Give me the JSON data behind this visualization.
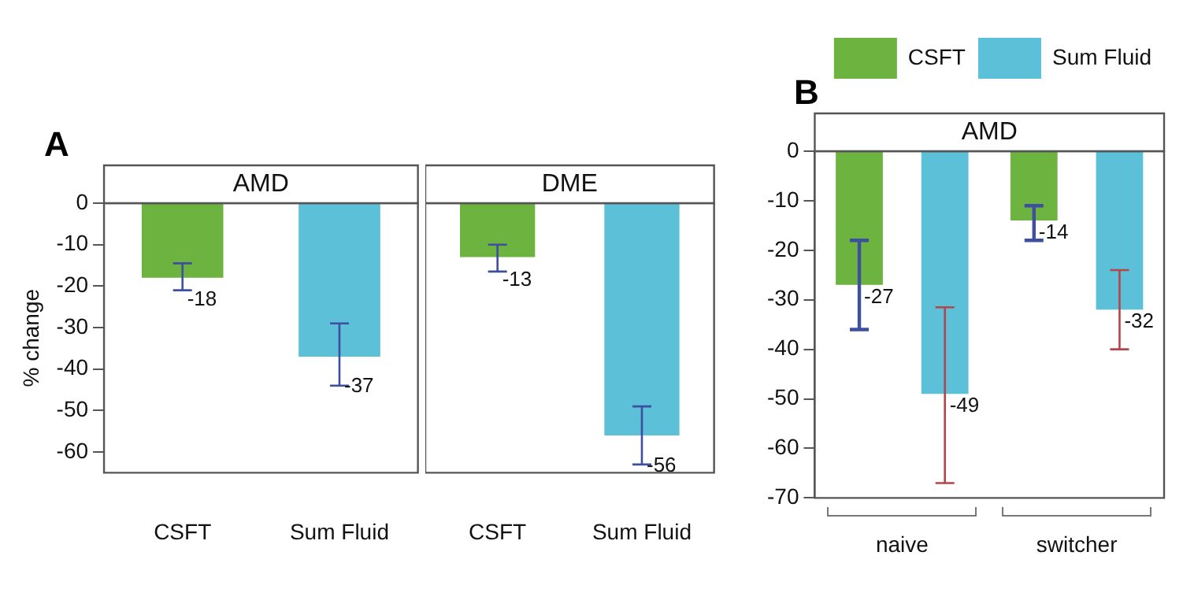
{
  "chart_data": [
    {
      "type": "bar",
      "title": "A",
      "subtitle": "AMD",
      "ylabel": "% change",
      "categories": [
        "CSFT",
        "Sum Fluid"
      ],
      "values": [
        -18,
        -37
      ],
      "colors": [
        "#6db33f",
        "#5bc0d8"
      ],
      "errors": [
        [
          -21,
          -14.5
        ],
        [
          -44,
          -29
        ]
      ],
      "data_labels": true,
      "ylim": [
        -65,
        0
      ],
      "yticks": [
        0,
        -10,
        -20,
        -30,
        -40,
        -50,
        -60
      ]
    },
    {
      "type": "bar",
      "subtitle": "DME",
      "categories": [
        "CSFT",
        "Sum Fluid"
      ],
      "values": [
        -13,
        -56
      ],
      "colors": [
        "#6db33f",
        "#5bc0d8"
      ],
      "errors": [
        [
          -16.5,
          -10
        ],
        [
          -63,
          -49
        ]
      ],
      "data_labels": true,
      "ylim": [
        -65,
        0
      ],
      "yticks": [
        0,
        -10,
        -20,
        -30,
        -40,
        -50,
        -60
      ],
      "tick_labels": "x"
    },
    {
      "type": "bar",
      "title": "B",
      "subtitle": "AMD",
      "categories": [
        "naive",
        "switcher"
      ],
      "legend": "top right",
      "data_labels": true,
      "ylim": [
        -70,
        0
      ],
      "yticks": [
        0,
        -10,
        -20,
        -30,
        -40,
        -50,
        -60,
        -70
      ],
      "series": [
        {
          "name": "CSFT",
          "color": "#6db33f",
          "values": [
            -27,
            -14
          ],
          "errors": [
            [
              -36,
              -18
            ],
            [
              -18,
              -11
            ]
          ]
        },
        {
          "name": "Sum Fluid",
          "color": "#5bc0d8",
          "values": [
            -49,
            -32
          ],
          "errors": [
            [
              -67,
              -31.5
            ],
            [
              -40,
              -24
            ]
          ]
        }
      ]
    }
  ]
}
